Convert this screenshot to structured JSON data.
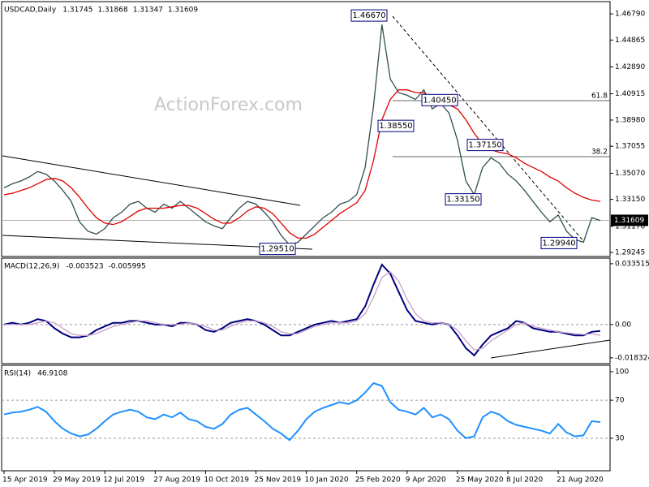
{
  "chart_data": [
    {
      "type": "line",
      "title": "USDCAD,Daily",
      "ohlc": [
        1.31745,
        1.31868,
        1.31347,
        1.31609
      ],
      "watermark": "ActionForex.com",
      "categories": [
        "15 Apr 2019",
        null,
        null,
        null,
        null,
        null,
        "29 May 2019",
        null,
        null,
        null,
        null,
        null,
        "12 Jul 2019",
        null,
        null,
        null,
        null,
        null,
        "27 Aug 2019",
        null,
        null,
        null,
        null,
        null,
        "10 Oct 2019",
        null,
        null,
        null,
        null,
        null,
        "25 Nov 2019",
        null,
        null,
        null,
        null,
        null,
        "10 Jan 2020",
        null,
        null,
        null,
        null,
        null,
        "25 Feb 2020",
        null,
        null,
        null,
        null,
        null,
        "9 Apr 2020",
        null,
        null,
        null,
        null,
        null,
        "25 May 2020",
        null,
        null,
        null,
        null,
        null,
        "8 Jul 2020",
        null,
        null,
        null,
        null,
        null,
        "21 Aug 2020",
        null,
        null,
        null,
        null,
        null
      ],
      "series": [
        {
          "color": "#2f4f4f",
          "values": [
            1.34,
            1.343,
            1.345,
            1.348,
            1.352,
            1.35,
            1.345,
            1.338,
            1.33,
            1.315,
            1.308,
            1.306,
            1.31,
            1.318,
            1.322,
            1.328,
            1.33,
            1.325,
            1.322,
            1.328,
            1.325,
            1.33,
            1.325,
            1.32,
            1.315,
            1.312,
            1.31,
            1.318,
            1.325,
            1.33,
            1.328,
            1.322,
            1.315,
            1.305,
            1.298,
            1.3,
            1.306,
            1.312,
            1.318,
            1.322,
            1.328,
            1.33,
            1.335,
            1.355,
            1.4,
            1.46,
            1.42,
            1.41,
            1.408,
            1.405,
            1.412,
            1.398,
            1.402,
            1.395,
            1.375,
            1.345,
            1.335,
            1.355,
            1.362,
            1.358,
            1.35,
            1.345,
            1.338,
            1.33,
            1.322,
            1.315,
            1.32,
            1.308,
            1.302,
            1.3,
            1.318,
            1.316
          ]
        },
        {
          "color": "#e00000",
          "values": [
            1.335,
            1.336,
            1.338,
            1.34,
            1.343,
            1.346,
            1.347,
            1.345,
            1.34,
            1.333,
            1.325,
            1.318,
            1.314,
            1.313,
            1.315,
            1.319,
            1.323,
            1.325,
            1.325,
            1.325,
            1.326,
            1.327,
            1.327,
            1.325,
            1.321,
            1.317,
            1.314,
            1.314,
            1.318,
            1.323,
            1.326,
            1.325,
            1.321,
            1.314,
            1.307,
            1.303,
            1.303,
            1.306,
            1.311,
            1.316,
            1.321,
            1.325,
            1.329,
            1.338,
            1.36,
            1.39,
            1.405,
            1.412,
            1.412,
            1.41,
            1.41,
            1.406,
            1.404,
            1.401,
            1.398,
            1.39,
            1.38,
            1.372,
            1.368,
            1.366,
            1.365,
            1.362,
            1.358,
            1.355,
            1.352,
            1.348,
            1.345,
            1.34,
            1.336,
            1.333,
            1.331,
            1.33
          ]
        }
      ],
      "ylim": [
        1.2895,
        1.4769
      ],
      "yticks": [
        {
          "value": 1.4679,
          "label": "1.46790"
        },
        1.44865,
        {
          "value": 1.4289,
          "label": "1.42890"
        },
        1.40915,
        {
          "value": 1.3898,
          "label": "1.38980"
        },
        1.37055,
        {
          "value": 1.3507,
          "label": "1.35070"
        },
        {
          "value": 1.3315,
          "label": "1.33150"
        },
        {
          "value": 1.3117,
          "label": "1.31170"
        },
        1.29245
      ],
      "annotations": [
        {
          "value": 1.4667,
          "label": "1.46670"
        },
        {
          "value": 1.2951,
          "label": "1.29510"
        },
        {
          "value": 1.3855,
          "label": "1.38550"
        },
        {
          "value": 1.4045,
          "label": "1.40450"
        },
        {
          "value": 1.3715,
          "label": "1.37150"
        },
        {
          "value": 1.3315,
          "label": "1.33150"
        },
        {
          "value": 1.2994,
          "label": "1.29940"
        }
      ],
      "fib_levels": [
        {
          "ratio": 61.8,
          "price": 1.4041
        },
        {
          "ratio": 38.2,
          "price": 1.3629
        }
      ]
    },
    {
      "type": "line",
      "title": "MACD(12,26,9)",
      "readout": [
        -0.003523,
        -0.005995
      ],
      "series": [
        {
          "color": "#000080",
          "values": [
            0.0,
            0.001,
            0.0,
            0.001,
            0.003,
            0.002,
            -0.002,
            -0.005,
            -0.007,
            -0.007,
            -0.006,
            -0.003,
            -0.001,
            0.001,
            0.001,
            0.002,
            0.002,
            0.001,
            0.0,
            0.0,
            -0.001,
            0.001,
            0.001,
            0.0,
            -0.003,
            -0.004,
            -0.002,
            0.001,
            0.002,
            0.003,
            0.002,
            0.0,
            -0.003,
            -0.006,
            -0.006,
            -0.004,
            -0.002,
            0.0,
            0.001,
            0.002,
            0.001,
            0.002,
            0.003,
            0.01,
            0.022,
            0.033,
            0.028,
            0.018,
            0.008,
            0.002,
            0.001,
            0.0,
            0.001,
            0.0,
            -0.006,
            -0.013,
            -0.017,
            -0.011,
            -0.006,
            -0.004,
            -0.002,
            0.002,
            0.001,
            -0.002,
            -0.003,
            -0.004,
            -0.004,
            -0.005,
            -0.006,
            -0.006,
            -0.004,
            -0.0035
          ]
        },
        {
          "color": "#c8a0c8",
          "values": [
            0.0,
            0.0,
            0.0,
            0.0,
            0.001,
            0.002,
            0.001,
            -0.002,
            -0.005,
            -0.006,
            -0.006,
            -0.005,
            -0.003,
            -0.001,
            0.0,
            0.001,
            0.002,
            0.002,
            0.001,
            0.0,
            0.0,
            0.0,
            0.001,
            0.0,
            -0.001,
            -0.003,
            -0.003,
            -0.001,
            0.001,
            0.002,
            0.002,
            0.001,
            -0.001,
            -0.004,
            -0.005,
            -0.005,
            -0.003,
            -0.001,
            0.0,
            0.001,
            0.001,
            0.001,
            0.002,
            0.006,
            0.015,
            0.026,
            0.029,
            0.024,
            0.014,
            0.006,
            0.002,
            0.001,
            0.001,
            0.0,
            -0.003,
            -0.009,
            -0.014,
            -0.013,
            -0.009,
            -0.006,
            -0.003,
            0.0,
            0.001,
            -0.001,
            -0.002,
            -0.003,
            -0.004,
            -0.0045,
            -0.005,
            -0.0055,
            -0.005,
            -0.006
          ]
        }
      ],
      "ylim": [
        -0.0215,
        0.0366
      ],
      "yticks": [
        0.033515,
        {
          "value": 0,
          "label": "0.00"
        },
        -0.018324
      ],
      "levels": [
        0
      ]
    },
    {
      "type": "line",
      "title": "RSI(14)",
      "readout": [
        46.9108
      ],
      "series": [
        {
          "color": "#1e90ff",
          "values": [
            55,
            57,
            58,
            60,
            63,
            58,
            48,
            40,
            35,
            32,
            34,
            40,
            48,
            55,
            58,
            60,
            58,
            52,
            50,
            55,
            52,
            57,
            50,
            48,
            42,
            40,
            45,
            55,
            60,
            62,
            55,
            48,
            40,
            35,
            28,
            38,
            50,
            58,
            62,
            65,
            68,
            66,
            70,
            78,
            88,
            85,
            68,
            60,
            58,
            55,
            62,
            52,
            55,
            50,
            38,
            30,
            32,
            52,
            58,
            55,
            48,
            44,
            42,
            40,
            38,
            35,
            45,
            36,
            32,
            33,
            48,
            47
          ]
        }
      ],
      "ylim": [
        -4.2,
        106.8
      ],
      "yticks": [
        100,
        70,
        30
      ],
      "levels": [
        30,
        70
      ]
    }
  ]
}
